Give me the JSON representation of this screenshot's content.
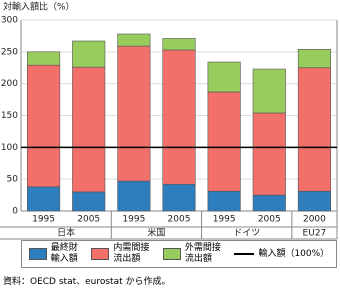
{
  "chart_data": {
    "type": "stacked_bar",
    "y_label": "対輸入額比（%）",
    "groups": [
      {
        "label": "日本",
        "categories": [
          "1995",
          "2005"
        ]
      },
      {
        "label": "米国",
        "categories": [
          "1995",
          "2005"
        ]
      },
      {
        "label": "ドイツ",
        "categories": [
          "1995",
          "2005"
        ]
      },
      {
        "label": "EU27",
        "categories": [
          "2000"
        ]
      }
    ],
    "series": [
      {
        "name": "最終財\n輸入額",
        "color": "#2e7dbd",
        "values": [
          38,
          30,
          47,
          42,
          31,
          25,
          31
        ]
      },
      {
        "name": "内需間接\n流出額",
        "color": "#f26f6a",
        "values": [
          191,
          196,
          212,
          211,
          156,
          129,
          194
        ]
      },
      {
        "name": "外需間接\n流出額",
        "color": "#98cc5c",
        "values": [
          21,
          41,
          19,
          18,
          47,
          69,
          29
        ]
      }
    ],
    "reference_line": {
      "value": 100,
      "label": "輸入額（100%）",
      "color": "#000000"
    },
    "ylim": [
      0,
      300
    ],
    "yticks": [
      0,
      50,
      100,
      150,
      200,
      250,
      300
    ],
    "grid": true,
    "source": "資料：OECD stat、eurostat から作成。"
  }
}
